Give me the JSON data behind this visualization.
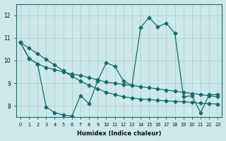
{
  "xlabel": "Humidex (Indice chaleur)",
  "xlim": [
    -0.5,
    23.5
  ],
  "ylim": [
    7.5,
    12.5
  ],
  "yticks": [
    8,
    9,
    10,
    11,
    12
  ],
  "xticks": [
    0,
    1,
    2,
    3,
    4,
    5,
    6,
    7,
    8,
    9,
    10,
    11,
    12,
    13,
    14,
    15,
    16,
    17,
    18,
    19,
    20,
    21,
    22,
    23
  ],
  "bg_color": "#cce8e8",
  "line_color": "#1a6b6b",
  "grid_color": "#aacccc",
  "line_volatile": {
    "x": [
      0,
      1,
      2,
      3,
      4,
      5,
      6,
      7,
      8,
      9,
      10,
      11,
      12,
      13,
      14,
      15,
      16,
      17,
      18,
      19,
      20,
      21,
      22,
      23
    ],
    "y": [
      10.8,
      10.1,
      9.85,
      7.95,
      7.7,
      7.6,
      7.55,
      8.45,
      8.1,
      9.1,
      9.9,
      9.75,
      9.1,
      8.9,
      11.45,
      11.9,
      11.5,
      11.65,
      11.2,
      8.4,
      8.45,
      7.7,
      8.5,
      8.5
    ]
  },
  "line_decline": {
    "x": [
      0,
      1,
      2,
      3,
      4,
      5,
      6,
      7,
      8,
      9,
      10,
      11,
      12,
      13,
      14,
      15,
      16,
      17,
      18,
      19,
      20,
      21,
      22,
      23
    ],
    "y": [
      10.8,
      10.55,
      10.3,
      10.05,
      9.8,
      9.55,
      9.3,
      9.1,
      8.9,
      8.75,
      8.6,
      8.5,
      8.4,
      8.35,
      8.3,
      8.28,
      8.25,
      8.22,
      8.2,
      8.18,
      8.15,
      8.12,
      8.1,
      8.08
    ]
  },
  "line_rise": {
    "x": [
      0,
      1,
      2,
      3,
      4,
      5,
      6,
      7,
      8,
      9,
      10,
      11,
      12,
      13,
      14,
      15,
      16,
      17,
      18,
      19,
      20,
      21,
      22,
      23
    ],
    "y": [
      10.8,
      10.1,
      9.85,
      9.7,
      9.6,
      9.5,
      9.4,
      9.35,
      9.25,
      9.15,
      9.05,
      9.0,
      8.95,
      8.9,
      8.85,
      8.8,
      8.75,
      8.7,
      8.65,
      8.6,
      8.55,
      8.5,
      8.45,
      8.4
    ]
  }
}
